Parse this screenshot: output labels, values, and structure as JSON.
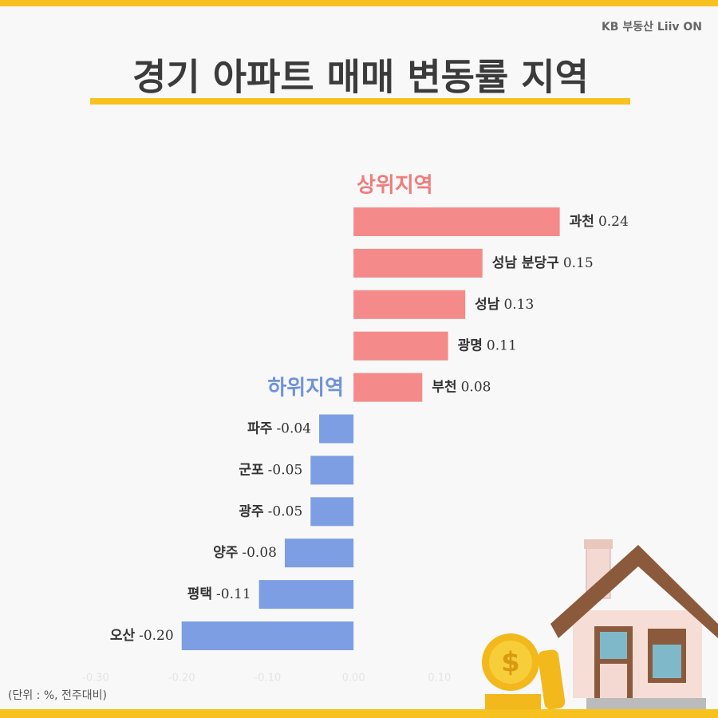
{
  "brand": "KB 부동산 Liiv ON",
  "note": "(단위 : %, 전주대비)",
  "chart_data": {
    "type": "barh",
    "title": "경기 아파트 매매 변동률 지역",
    "group_labels": [
      "상위지역",
      "하위지역"
    ],
    "categories": [
      "과천",
      "성남 분당구",
      "성남",
      "광명",
      "부천",
      "파주",
      "군포",
      "광주",
      "양주",
      "평택",
      "오산"
    ],
    "values": [
      0.24,
      0.15,
      0.13,
      0.11,
      0.08,
      -0.04,
      -0.05,
      -0.05,
      -0.08,
      -0.11,
      -0.2
    ],
    "value_labels": [
      "0.24",
      "0.15",
      "0.13",
      "0.11",
      "0.08",
      "-0.04",
      "-0.05",
      "-0.05",
      "-0.08",
      "-0.11",
      "-0.20"
    ],
    "positive_color": "#f48a8a",
    "negative_color": "#7d9ee2",
    "xlim": [
      -0.3,
      0.4
    ],
    "xticks": [
      {
        "value": -0.3,
        "label": "-0.30"
      },
      {
        "value": -0.2,
        "label": "-0.20"
      },
      {
        "value": -0.1,
        "label": "-0.10"
      },
      {
        "value": 0,
        "label": "0.00"
      },
      {
        "value": 0.1,
        "label": "0.10"
      }
    ]
  }
}
